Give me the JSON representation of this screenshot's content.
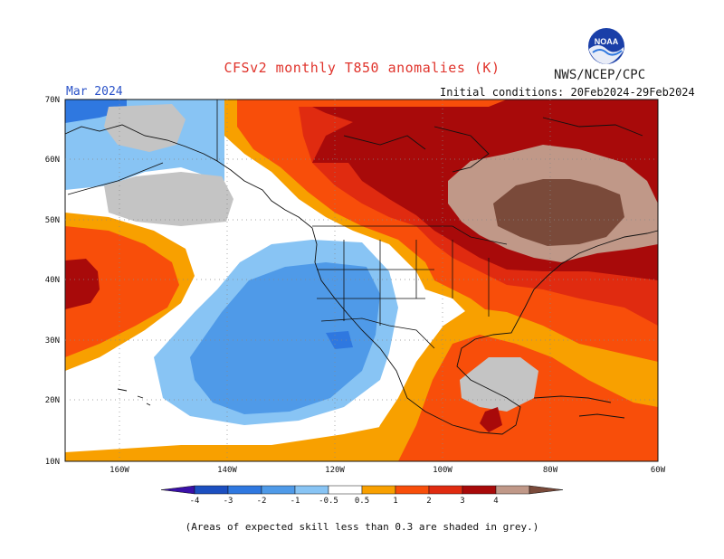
{
  "title": "CFSv2 monthly T850 anomalies (K)",
  "org": "NWS/NCEP/CPC",
  "logo_text": "NOAA",
  "valid_month": "Mar 2024",
  "initial_conditions": "Initial conditions: 20Feb2024-29Feb2024",
  "footnote": "(Areas of expected skill less than 0.3 are shaded in grey.)",
  "map": {
    "lat_ticks": [
      "70N",
      "60N",
      "50N",
      "40N",
      "30N",
      "20N",
      "10N"
    ],
    "lon_ticks": [
      "160W",
      "140W",
      "120W",
      "100W",
      "80W",
      "60W"
    ]
  },
  "colorbar": {
    "labels": [
      "-4",
      "-3",
      "-2",
      "-1",
      "-0.5",
      "0.5",
      "1",
      "2",
      "3",
      "4"
    ],
    "colors": [
      "#3a10a8",
      "#1c4fc0",
      "#2f78e0",
      "#4f9ae8",
      "#88c4f4",
      "#ffffff",
      "#f8a000",
      "#f84e0a",
      "#e02b10",
      "#a80a0a",
      "#c09888",
      "#7a4a3a"
    ]
  },
  "colors": {
    "anomaly_dark_brown": "#7a4a3a",
    "anomaly_light_brown": "#c09888",
    "anomaly_dark_red": "#a80a0a",
    "anomaly_red": "#e02b10",
    "anomaly_orange_red": "#f84e0a",
    "anomaly_orange": "#f8a000",
    "anomaly_light_blue": "#88c4f4",
    "anomaly_blue": "#4f9ae8",
    "anomaly_mid_blue": "#2f78e0",
    "low_skill_grey": "#c4c4c4"
  }
}
